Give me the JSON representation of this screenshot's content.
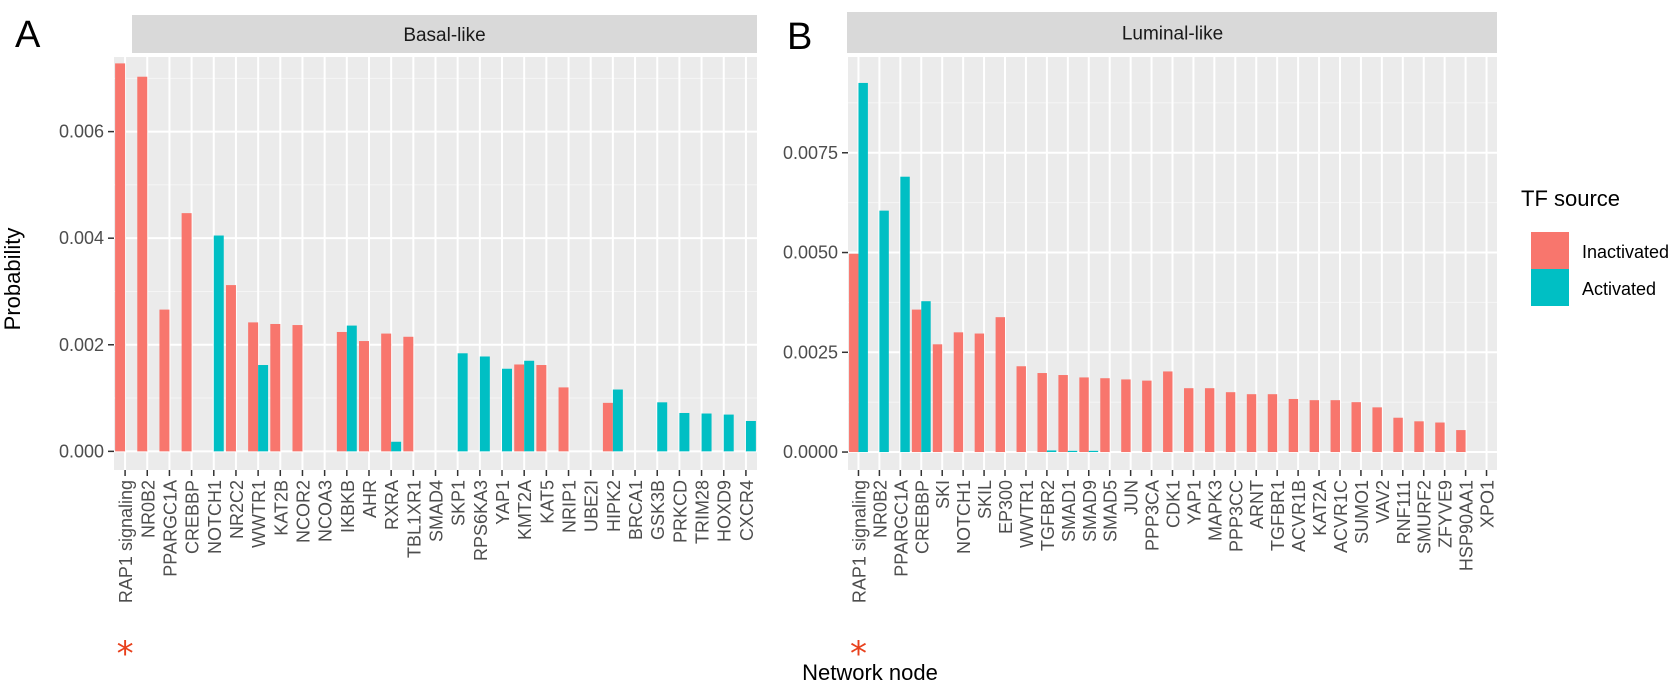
{
  "figure": {
    "xlabel": "Network node",
    "ylabel": "Probability",
    "legend": {
      "title": "TF source",
      "items": [
        {
          "label": "Inactivated",
          "color": "#F8766D"
        },
        {
          "label": "Activated",
          "color": "#00BFC4"
        }
      ]
    },
    "star_marker": "*",
    "star_color": "#e8401c"
  },
  "chart_data": [
    {
      "type": "bar",
      "panel_letter": "A",
      "facet_label": "Basal-like",
      "ylabel": "Probability",
      "xlabel": "Network node",
      "ylim": [
        -0.00035,
        0.0074
      ],
      "yticks": [
        0.0,
        0.002,
        0.004,
        0.006
      ],
      "ytick_labels": [
        "0.000",
        "0.002",
        "0.004",
        "0.006"
      ],
      "grid": true,
      "legend_position": "right",
      "categories": [
        "RAP1 signaling",
        "NR0B2",
        "PPARGC1A",
        "CREBBP",
        "NOTCH1",
        "NR2C2",
        "WWTR1",
        "KAT2B",
        "NCOR2",
        "NCOA3",
        "IKBKB",
        "AHR",
        "RXRA",
        "TBL1XR1",
        "SMAD4",
        "SKP1",
        "RPS6KA3",
        "YAP1",
        "KMT2A",
        "KAT5",
        "NRIP1",
        "UBE2I",
        "HIPK2",
        "BRCA1",
        "GSK3B",
        "PRKCD",
        "TRIM28",
        "HOXD9",
        "CXCR4"
      ],
      "series": [
        {
          "name": "Inactivated",
          "color": "#F8766D",
          "values": [
            0.00728,
            0.00703,
            0.00266,
            0.00447,
            0,
            0.00312,
            0.00242,
            0.00239,
            0.00237,
            0,
            0.00224,
            0.00207,
            0.00221,
            0.00215,
            0,
            0,
            0,
            0,
            0.00163,
            0.00162,
            0.0012,
            0,
            0.00091,
            0,
            0,
            0,
            0,
            0,
            0
          ]
        },
        {
          "name": "Activated",
          "color": "#00BFC4",
          "values": [
            0,
            0,
            0,
            0,
            0.00405,
            0,
            0.00162,
            0,
            0,
            0,
            0.00236,
            0,
            0.00018,
            0,
            0,
            0.00184,
            0.00178,
            0.00155,
            0.0017,
            0,
            0,
            0,
            0.00116,
            0,
            0.00092,
            0.00072,
            0.00071,
            0.00069,
            0.00057
          ]
        }
      ],
      "starred_category": "RAP1 signaling"
    },
    {
      "type": "bar",
      "panel_letter": "B",
      "facet_label": "Luminal-like",
      "ylabel": "",
      "xlabel": "Network node",
      "ylim": [
        -0.00045,
        0.0099
      ],
      "yticks": [
        0.0,
        0.0025,
        0.005,
        0.0075
      ],
      "ytick_labels": [
        "0.0000",
        "0.0025",
        "0.0050",
        "0.0075"
      ],
      "grid": true,
      "legend_position": "right",
      "categories": [
        "RAP1 signaling",
        "NR0B2",
        "PPARGC1A",
        "CREBBP",
        "SKI",
        "NOTCH1",
        "SKIL",
        "EP300",
        "WWTR1",
        "TGFBR2",
        "SMAD1",
        "SMAD9",
        "SMAD5",
        "JUN",
        "PPP3CA",
        "CDK1",
        "YAP1",
        "MAPK3",
        "PPP3CC",
        "ARNT",
        "TGFBR1",
        "ACVR1B",
        "KAT2A",
        "ACVR1C",
        "SUMO1",
        "VAV2",
        "RNF111",
        "SMURF2",
        "ZFYVE9",
        "HSP90AA1",
        "XPO1"
      ],
      "series": [
        {
          "name": "Inactivated",
          "color": "#F8766D",
          "values": [
            0.00497,
            0,
            0,
            0.00357,
            0.0027,
            0.003,
            0.00297,
            0.00338,
            0.00215,
            0.00198,
            0.00193,
            0.00187,
            0.00185,
            0.00182,
            0.00179,
            0.00202,
            0.0016,
            0.0016,
            0.0015,
            0.00145,
            0.00145,
            0.00133,
            0.0013,
            0.0013,
            0.00125,
            0.00112,
            0.00086,
            0.00077,
            0.00074,
            0.00055,
            0
          ]
        },
        {
          "name": "Activated",
          "color": "#00BFC4",
          "values": [
            0.00925,
            0.00605,
            0.0069,
            0.00378,
            0,
            0,
            0,
            0,
            0,
            4e-05,
            3e-05,
            3e-05,
            0,
            0,
            0,
            0,
            0,
            0,
            0,
            0,
            0,
            0,
            0,
            0,
            0,
            0,
            0,
            0,
            0,
            0,
            0
          ]
        }
      ],
      "starred_category": "RAP1 signaling"
    }
  ]
}
